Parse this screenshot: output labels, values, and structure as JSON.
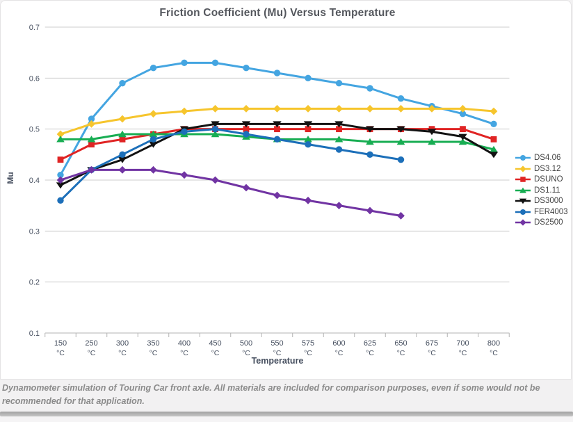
{
  "page": {
    "caption": "Dynamometer simulation of Touring Car front axle. All materials are included for comparison purposes, even if some would not be recommended for that application."
  },
  "chart_data": {
    "type": "line",
    "title": "Friction Coefficient (Mu) Versus Temperature",
    "xlabel": "Temperature",
    "ylabel": "Mu",
    "unit": "°C",
    "categories": [
      "150",
      "250",
      "300",
      "350",
      "400",
      "450",
      "500",
      "550",
      "575",
      "600",
      "625",
      "650",
      "675",
      "700",
      "800"
    ],
    "ylim": [
      0.1,
      0.7
    ],
    "ytick_step": 0.1,
    "grid": "horizontal",
    "legend_position": "right",
    "axis_text_color": "#475060",
    "grid_color": "#cccccc",
    "series": [
      {
        "name": "DS4.06",
        "color": "#44a5e1",
        "marker": "circle",
        "values": [
          0.41,
          0.52,
          0.59,
          0.62,
          0.63,
          0.63,
          0.62,
          0.61,
          0.6,
          0.59,
          0.58,
          0.56,
          0.545,
          0.53,
          0.51
        ]
      },
      {
        "name": "DS3.12",
        "color": "#f6c52d",
        "marker": "diamond",
        "values": [
          0.49,
          0.51,
          0.52,
          0.53,
          0.535,
          0.54,
          0.54,
          0.54,
          0.54,
          0.54,
          0.54,
          0.54,
          0.54,
          0.54,
          0.535
        ]
      },
      {
        "name": "DSUNO",
        "color": "#e02424",
        "marker": "square",
        "values": [
          0.44,
          0.47,
          0.48,
          0.49,
          0.5,
          0.5,
          0.5,
          0.5,
          0.5,
          0.5,
          0.5,
          0.5,
          0.5,
          0.5,
          0.48
        ]
      },
      {
        "name": "DS1.11",
        "color": "#17ad52",
        "marker": "triangle-up",
        "values": [
          0.48,
          0.48,
          0.49,
          0.49,
          0.49,
          0.49,
          0.485,
          0.48,
          0.48,
          0.48,
          0.475,
          0.475,
          0.475,
          0.475,
          0.46
        ]
      },
      {
        "name": "DS3000",
        "color": "#121212",
        "marker": "triangle-down",
        "values": [
          0.39,
          0.42,
          0.44,
          0.47,
          0.5,
          0.51,
          0.51,
          0.51,
          0.51,
          0.51,
          0.5,
          0.5,
          0.495,
          0.485,
          0.45
        ]
      },
      {
        "name": "FER4003",
        "color": "#1c6fb9",
        "marker": "circle",
        "values": [
          0.36,
          0.42,
          0.45,
          0.48,
          0.495,
          0.5,
          0.49,
          0.48,
          0.47,
          0.46,
          0.45,
          0.44,
          null,
          null,
          null
        ]
      },
      {
        "name": "DS2500",
        "color": "#7134a3",
        "marker": "diamond",
        "values": [
          0.4,
          0.42,
          0.42,
          0.42,
          0.41,
          0.4,
          0.385,
          0.37,
          0.36,
          0.35,
          0.34,
          0.33,
          null,
          null,
          null
        ]
      }
    ]
  }
}
